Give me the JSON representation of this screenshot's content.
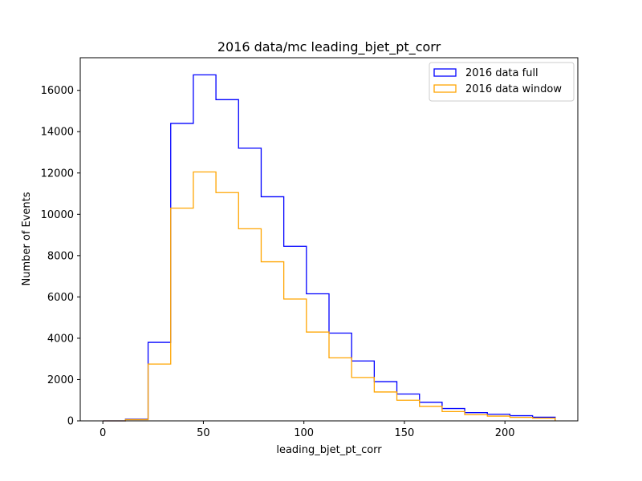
{
  "chart_data": {
    "type": "histogram",
    "title": "2016 data/mc leading_bjet_pt_corr",
    "xlabel": "leading_bjet_pt_corr",
    "ylabel": "Number of Events",
    "xlim": [
      -11.25,
      236.25
    ],
    "ylim": [
      0,
      17580
    ],
    "xticks": [
      0,
      50,
      100,
      150,
      200
    ],
    "yticks": [
      0,
      2000,
      4000,
      6000,
      8000,
      10000,
      12000,
      14000,
      16000
    ],
    "bin_edges": [
      0,
      11.25,
      22.5,
      33.75,
      45,
      56.25,
      67.5,
      78.75,
      90,
      101.25,
      112.5,
      123.75,
      135,
      146.25,
      157.5,
      168.75,
      180,
      191.25,
      202.5,
      213.75,
      225
    ],
    "series": [
      {
        "name": "2016 data full",
        "color": "#0000ff",
        "values": [
          0,
          80,
          3800,
          14400,
          16750,
          15550,
          13200,
          10850,
          8450,
          6150,
          4250,
          2900,
          1900,
          1300,
          900,
          600,
          400,
          320,
          250,
          180
        ]
      },
      {
        "name": "2016 data window",
        "color": "#ffa500",
        "values": [
          0,
          60,
          2750,
          10300,
          12050,
          11050,
          9300,
          7700,
          5900,
          4300,
          3050,
          2100,
          1400,
          1000,
          700,
          450,
          300,
          230,
          170,
          130
        ]
      }
    ],
    "legend": {
      "position": "upper right"
    },
    "grid": false
  }
}
